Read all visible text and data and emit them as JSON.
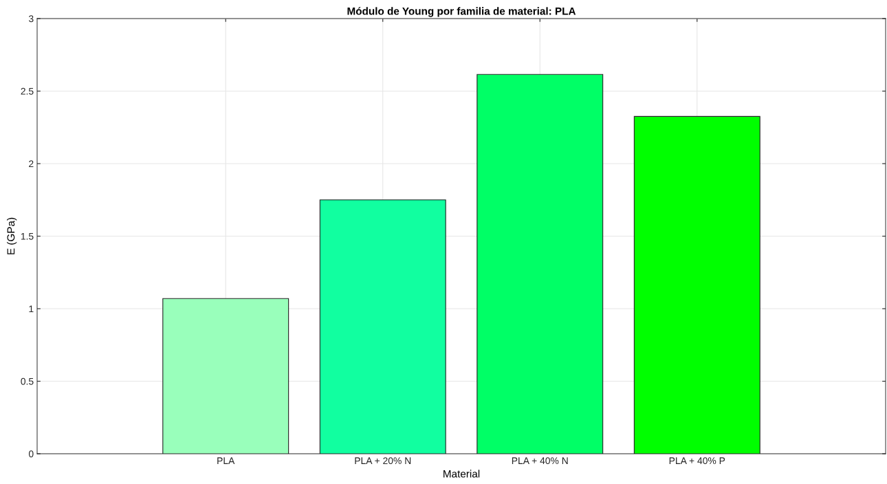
{
  "chart_data": {
    "type": "bar",
    "title": "Módulo de Young por familia de material: PLA",
    "xlabel": "Material",
    "ylabel": "E (GPa)",
    "categories": [
      "PLA",
      "PLA + 20% N",
      "PLA + 40% N",
      "PLA + 40% P"
    ],
    "values": [
      1.07,
      1.75,
      2.615,
      2.325
    ],
    "colors": [
      "#99ffbb",
      "#11ffa0",
      "#00ff66",
      "#00ff00"
    ],
    "ylim": [
      0,
      3
    ],
    "yticks": [
      0,
      0.5,
      1,
      1.5,
      2,
      2.5,
      3
    ],
    "grid": true
  }
}
